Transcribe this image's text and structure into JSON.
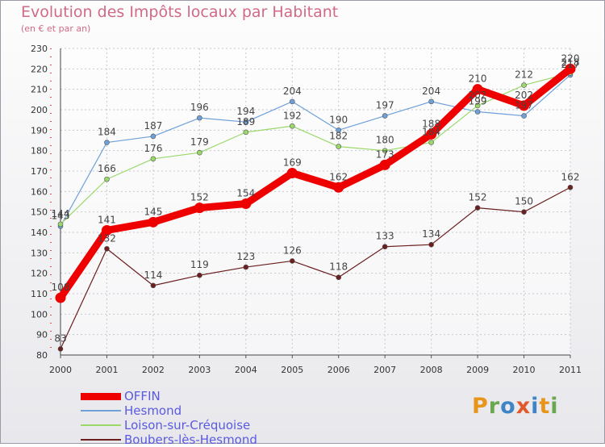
{
  "title": "Evolution des Impôts locaux par Habitant",
  "subtitle": "(en € et par an)",
  "brand": "Proxiti",
  "brand_colors": [
    "#e8951c",
    "#6aa84f",
    "#3d85c6",
    "#e05a2b",
    "#3d85c6",
    "#e8951c",
    "#6aa84f"
  ],
  "chart_data": {
    "type": "line",
    "categories": [
      "2000",
      "2001",
      "2002",
      "2003",
      "2004",
      "2005",
      "2006",
      "2007",
      "2008",
      "2009",
      "2010",
      "2011"
    ],
    "ylim": [
      80,
      230
    ],
    "yticks": [
      80,
      90,
      100,
      110,
      120,
      130,
      140,
      150,
      160,
      170,
      180,
      190,
      200,
      210,
      220,
      230
    ],
    "grid": true,
    "legend_position": "bottom-left",
    "series": [
      {
        "name": "OFFIN",
        "color": "#ee0000",
        "emphasis": true,
        "values": [
          108,
          141,
          145,
          152,
          154,
          169,
          162,
          173,
          188,
          210,
          202,
          220
        ]
      },
      {
        "name": "Hesmond",
        "color": "#6fa0d8",
        "emphasis": false,
        "values": [
          143,
          184,
          187,
          196,
          194,
          204,
          190,
          197,
          204,
          199,
          197,
          217
        ]
      },
      {
        "name": "Loison-sur-Créquoise",
        "color": "#9ad86a",
        "emphasis": false,
        "values": [
          144,
          166,
          176,
          179,
          189,
          192,
          182,
          180,
          184,
          202,
          212,
          218
        ]
      },
      {
        "name": "Boubers-lès-Hesmond",
        "color": "#6b1f1f",
        "emphasis": false,
        "values": [
          83,
          132,
          114,
          119,
          123,
          126,
          118,
          133,
          134,
          152,
          150,
          162
        ]
      }
    ]
  }
}
